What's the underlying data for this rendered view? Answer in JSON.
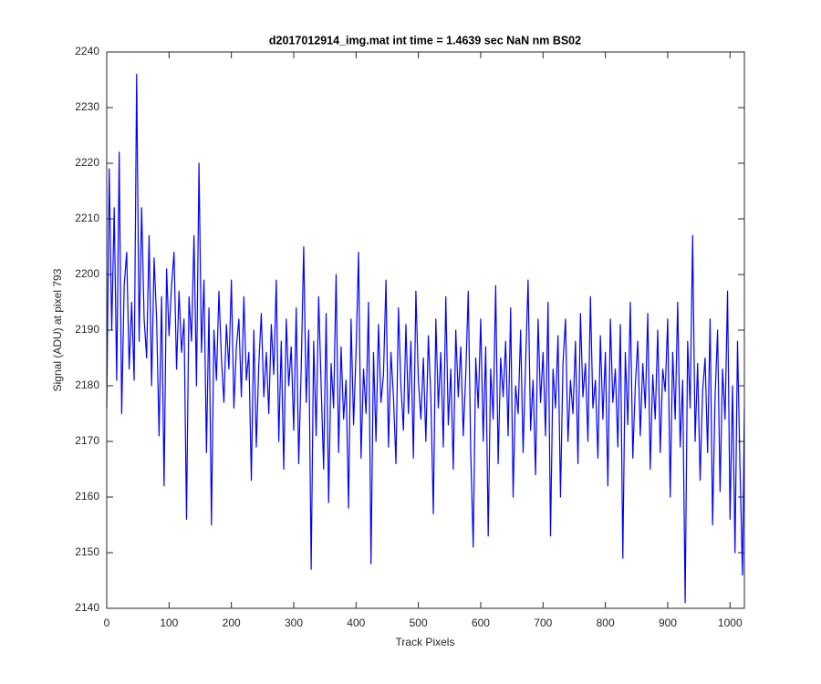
{
  "chart_data": {
    "type": "line",
    "title": "d2017012914_img.mat int time = 1.4639 sec  NaN nm BS02",
    "xlabel": "Track Pixels",
    "ylabel": "Signal (ADU) at pixel 793",
    "x": [
      0,
      4,
      8,
      12,
      16,
      20,
      24,
      28,
      32,
      36,
      40,
      44,
      48,
      52,
      56,
      60,
      64,
      68,
      72,
      76,
      80,
      84,
      88,
      92,
      96,
      100,
      104,
      108,
      112,
      116,
      120,
      124,
      128,
      132,
      136,
      140,
      144,
      148,
      152,
      156,
      160,
      164,
      168,
      172,
      176,
      180,
      184,
      188,
      192,
      196,
      200,
      204,
      208,
      212,
      216,
      220,
      224,
      228,
      232,
      236,
      240,
      244,
      248,
      252,
      256,
      260,
      264,
      268,
      272,
      276,
      280,
      284,
      288,
      292,
      296,
      300,
      304,
      308,
      312,
      316,
      320,
      324,
      328,
      332,
      336,
      340,
      344,
      348,
      352,
      356,
      360,
      364,
      368,
      372,
      376,
      380,
      384,
      388,
      392,
      396,
      400,
      404,
      408,
      412,
      416,
      420,
      424,
      428,
      432,
      436,
      440,
      444,
      448,
      452,
      456,
      460,
      464,
      468,
      472,
      476,
      480,
      484,
      488,
      492,
      496,
      500,
      504,
      508,
      512,
      516,
      520,
      524,
      528,
      532,
      536,
      540,
      544,
      548,
      552,
      556,
      560,
      564,
      568,
      572,
      576,
      580,
      584,
      588,
      592,
      596,
      600,
      604,
      608,
      612,
      616,
      620,
      624,
      628,
      632,
      636,
      640,
      644,
      648,
      652,
      656,
      660,
      664,
      668,
      672,
      676,
      680,
      684,
      688,
      692,
      696,
      700,
      704,
      708,
      712,
      716,
      720,
      724,
      728,
      732,
      736,
      740,
      744,
      748,
      752,
      756,
      760,
      764,
      768,
      772,
      776,
      780,
      784,
      788,
      792,
      796,
      800,
      804,
      808,
      812,
      816,
      820,
      824,
      828,
      832,
      836,
      840,
      844,
      848,
      852,
      856,
      860,
      864,
      868,
      872,
      876,
      880,
      884,
      888,
      892,
      896,
      900,
      904,
      908,
      912,
      916,
      920,
      924,
      928,
      932,
      936,
      940,
      944,
      948,
      952,
      956,
      960,
      964,
      968,
      972,
      976,
      980,
      984,
      988,
      992,
      996,
      1000,
      1004,
      1008,
      1012,
      1016,
      1020,
      1023
    ],
    "series": [
      {
        "name": "signal",
        "color": "#0000ff",
        "values": [
          2176,
          2219,
          2190,
          2212,
          2181,
          2222,
          2175,
          2198,
          2204,
          2183,
          2195,
          2181,
          2236,
          2188,
          2212,
          2192,
          2185,
          2207,
          2180,
          2203,
          2192,
          2171,
          2196,
          2162,
          2201,
          2189,
          2198,
          2204,
          2183,
          2197,
          2186,
          2192,
          2156,
          2196,
          2188,
          2207,
          2180,
          2220,
          2186,
          2199,
          2168,
          2194,
          2155,
          2190,
          2181,
          2197,
          2185,
          2177,
          2191,
          2183,
          2199,
          2176,
          2187,
          2192,
          2178,
          2196,
          2181,
          2186,
          2163,
          2190,
          2169,
          2184,
          2193,
          2178,
          2186,
          2175,
          2191,
          2182,
          2199,
          2170,
          2188,
          2165,
          2192,
          2180,
          2187,
          2172,
          2194,
          2166,
          2183,
          2205,
          2177,
          2190,
          2147,
          2188,
          2171,
          2196,
          2180,
          2165,
          2193,
          2159,
          2184,
          2176,
          2200,
          2168,
          2187,
          2174,
          2181,
          2158,
          2192,
          2173,
          2186,
          2204,
          2167,
          2183,
          2175,
          2195,
          2148,
          2186,
          2170,
          2191,
          2177,
          2182,
          2199,
          2169,
          2186,
          2178,
          2166,
          2194,
          2180,
          2172,
          2191,
          2175,
          2188,
          2167,
          2197,
          2181,
          2174,
          2185,
          2170,
          2189,
          2178,
          2157,
          2192,
          2176,
          2186,
          2169,
          2196,
          2173,
          2183,
          2165,
          2190,
          2178,
          2187,
          2171,
          2182,
          2197,
          2168,
          2151,
          2185,
          2176,
          2192,
          2170,
          2187,
          2153,
          2183,
          2174,
          2198,
          2166,
          2185,
          2178,
          2188,
          2171,
          2194,
          2160,
          2180,
          2175,
          2190,
          2168,
          2184,
          2199,
          2172,
          2181,
          2164,
          2192,
          2177,
          2186,
          2171,
          2195,
          2153,
          2183,
          2176,
          2189,
          2160,
          2184,
          2192,
          2170,
          2181,
          2175,
          2188,
          2166,
          2193,
          2178,
          2184,
          2170,
          2196,
          2176,
          2181,
          2167,
          2189,
          2174,
          2186,
          2162,
          2192,
          2177,
          2183,
          2169,
          2191,
          2149,
          2186,
          2173,
          2195,
          2167,
          2180,
          2188,
          2171,
          2184,
          2176,
          2193,
          2165,
          2182,
          2174,
          2190,
          2168,
          2183,
          2179,
          2192,
          2160,
          2186,
          2174,
          2195,
          2169,
          2181,
          2141,
          2188,
          2176,
          2207,
          2170,
          2184,
          2163,
          2179,
          2185,
          2168,
          2192,
          2155,
          2178,
          2190,
          2161,
          2183,
          2174,
          2197,
          2156,
          2180,
          2150,
          2188,
          2165,
          2146,
          2176
        ]
      }
    ],
    "xlim": [
      0,
      1023
    ],
    "ylim": [
      2140,
      2240
    ],
    "xticks": [
      0,
      100,
      200,
      300,
      400,
      500,
      600,
      700,
      800,
      900,
      1000
    ],
    "yticks": [
      2140,
      2150,
      2160,
      2170,
      2180,
      2190,
      2200,
      2210,
      2220,
      2230,
      2240
    ]
  }
}
